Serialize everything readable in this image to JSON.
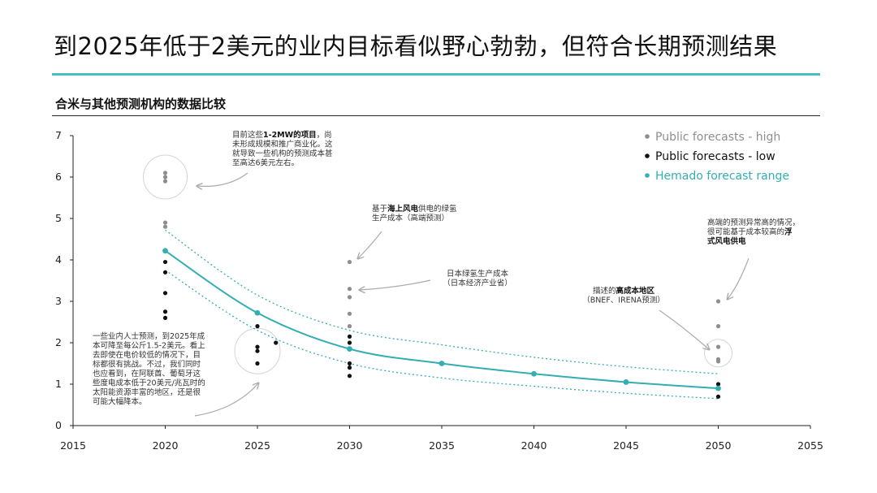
{
  "header": {
    "title": "到2025年低于2美元的业内目标看似野心勃勃，但符合长期预测结果",
    "subtitle": "合米与其他预测机构的数据比较"
  },
  "colors": {
    "accent": "#49bcc1",
    "high": "#8e8e8e",
    "low": "#111111",
    "hemado": "#33aeb2"
  },
  "chart_data": {
    "type": "scatter",
    "xlim": [
      2015,
      2055
    ],
    "ylim": [
      0,
      7
    ],
    "x_ticks": [
      "2015",
      "2020",
      "2025",
      "2030",
      "2035",
      "2040",
      "2045",
      "2050",
      "2055"
    ],
    "y_ticks": [
      "0",
      "1",
      "2",
      "3",
      "4",
      "5",
      "6",
      "7"
    ],
    "legend": [
      {
        "label": "Public forecasts - high",
        "color": "#8e8e8e"
      },
      {
        "label": "Public forecasts - low",
        "color": "#111111"
      },
      {
        "label": "Hemado forecast range",
        "color": "#33aeb2"
      }
    ],
    "legend_position": "top-right",
    "series": [
      {
        "name": "Public forecasts - high",
        "points": [
          [
            2020,
            6.1
          ],
          [
            2020,
            6.0
          ],
          [
            2020,
            5.9
          ],
          [
            2020,
            4.9
          ],
          [
            2020,
            4.8
          ],
          [
            2030,
            3.95
          ],
          [
            2030,
            3.3
          ],
          [
            2030,
            3.1
          ],
          [
            2030,
            2.7
          ],
          [
            2030,
            2.4
          ],
          [
            2050,
            3.0
          ],
          [
            2050,
            2.4
          ],
          [
            2050,
            1.9
          ],
          [
            2050,
            1.6
          ],
          [
            2050,
            1.55
          ]
        ]
      },
      {
        "name": "Public forecasts - low",
        "points": [
          [
            2020,
            3.95
          ],
          [
            2020,
            3.7
          ],
          [
            2020,
            3.2
          ],
          [
            2020,
            2.75
          ],
          [
            2020,
            2.6
          ],
          [
            2025,
            2.4
          ],
          [
            2025,
            1.9
          ],
          [
            2025,
            1.8
          ],
          [
            2025,
            1.5
          ],
          [
            2026,
            2.0
          ],
          [
            2030,
            2.15
          ],
          [
            2030,
            2.0
          ],
          [
            2030,
            1.85
          ],
          [
            2030,
            1.5
          ],
          [
            2030,
            1.4
          ],
          [
            2030,
            1.2
          ],
          [
            2050,
            1.0
          ],
          [
            2050,
            0.9
          ],
          [
            2050,
            0.7
          ]
        ]
      },
      {
        "name": "Hemado forecast range",
        "points": [
          [
            2020,
            4.22
          ],
          [
            2025,
            2.72
          ],
          [
            2030,
            1.85
          ],
          [
            2035,
            1.5
          ],
          [
            2040,
            1.25
          ],
          [
            2045,
            1.05
          ],
          [
            2050,
            0.9
          ]
        ],
        "upper": [
          [
            2020,
            4.72
          ],
          [
            2025,
            3.15
          ],
          [
            2030,
            2.3
          ],
          [
            2035,
            1.95
          ],
          [
            2040,
            1.65
          ],
          [
            2045,
            1.42
          ],
          [
            2050,
            1.25
          ]
        ],
        "lower": [
          [
            2020,
            3.75
          ],
          [
            2025,
            2.3
          ],
          [
            2030,
            1.5
          ],
          [
            2035,
            1.15
          ],
          [
            2040,
            0.95
          ],
          [
            2045,
            0.78
          ],
          [
            2050,
            0.65
          ]
        ]
      }
    ],
    "annotations": [
      {
        "lines": [
          [
            {
              "t": "目前这些",
              "b": false
            },
            {
              "t": "1-2MW的项目",
              "b": true
            },
            {
              "t": "，尚",
              "b": false
            }
          ],
          [
            {
              "t": "未形成规模和推广商业化。这",
              "b": false
            }
          ],
          [
            {
              "t": "就导致一些机构的预测成本甚",
              "b": false
            }
          ],
          [
            {
              "t": "至高达6美元左右。",
              "b": false
            }
          ]
        ]
      },
      {
        "lines": [
          [
            {
              "t": "基于",
              "b": false
            },
            {
              "t": "海上风电",
              "b": true
            },
            {
              "t": "供电的绿氢",
              "b": false
            }
          ],
          [
            {
              "t": "生产成本（高端预测）",
              "b": false
            }
          ]
        ]
      },
      {
        "lines": [
          [
            {
              "t": "日本绿氢生产成本",
              "b": false
            }
          ],
          [
            {
              "t": "（日本经济产业省）",
              "b": false
            }
          ]
        ]
      },
      {
        "lines": [
          [
            {
              "t": "高端的预测异常高的情况，",
              "b": false
            }
          ],
          [
            {
              "t": "很可能基于成本较高的",
              "b": false
            },
            {
              "t": "浮",
              "b": true
            }
          ],
          [
            {
              "t": "式风电供电",
              "b": true
            }
          ]
        ]
      },
      {
        "lines": [
          [
            {
              "t": "描述的",
              "b": false
            },
            {
              "t": "高成本地区",
              "b": true
            }
          ],
          [
            {
              "t": "（BNEF、IRENA预测）",
              "b": false
            }
          ]
        ]
      },
      {
        "lines": [
          [
            {
              "t": "一些业内人士预测，到2025年成",
              "b": false
            }
          ],
          [
            {
              "t": "本可降至每公斤1.5-2美元。看上",
              "b": false
            }
          ],
          [
            {
              "t": "去即使在电价较低的情况下，目",
              "b": false
            }
          ],
          [
            {
              "t": "标都很有挑战。不过，我们同时",
              "b": false
            }
          ],
          [
            {
              "t": "也应看到，在阿联酋、葡萄牙这",
              "b": false
            }
          ],
          [
            {
              "t": "些度电成本低于20美元/兆瓦时的",
              "b": false
            }
          ],
          [
            {
              "t": "太阳能资源丰富的地区，还是很",
              "b": false
            }
          ],
          [
            {
              "t": "可能大幅降本。",
              "b": false
            }
          ]
        ]
      }
    ]
  }
}
